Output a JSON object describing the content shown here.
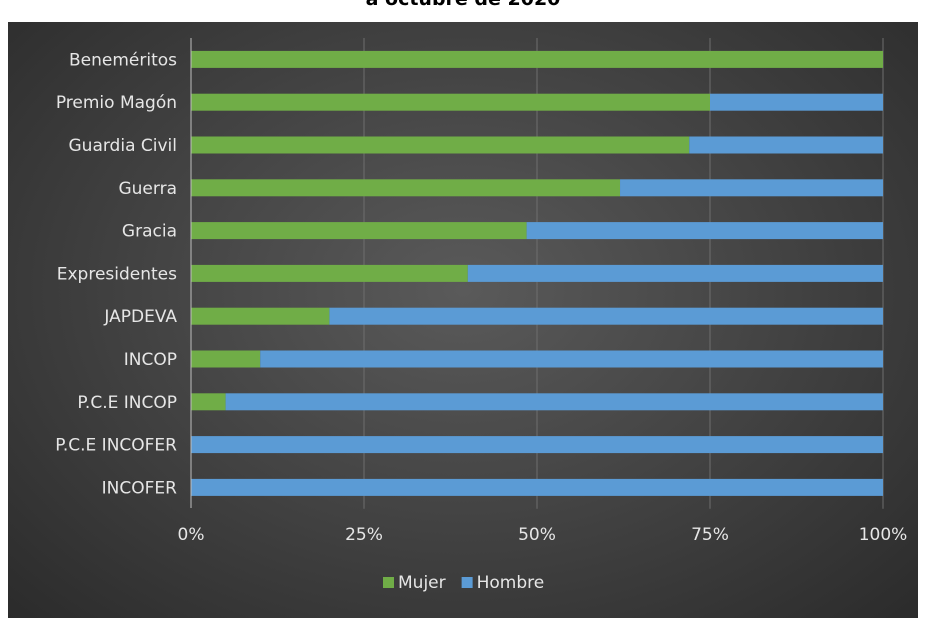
{
  "chart_data": {
    "type": "bar",
    "orientation": "horizontal",
    "stacked": "percent",
    "title": "a octubre de 2020",
    "categories": [
      "Beneméritos",
      "Premio Magón",
      "Guardia Civil",
      "Guerra",
      "Gracia",
      "Expresidentes",
      "JAPDEVA",
      "INCOP",
      "P.C.E INCOP",
      "P.C.E INCOFER",
      "INCOFER"
    ],
    "series": [
      {
        "name": "Mujer",
        "color": "#70ad47",
        "values": [
          100,
          75,
          72,
          62,
          48.5,
          40,
          20,
          10,
          5,
          0,
          0
        ]
      },
      {
        "name": "Hombre",
        "color": "#5b9bd5",
        "values": [
          0,
          25,
          28,
          38,
          51.5,
          60,
          80,
          90,
          95,
          100,
          100
        ]
      }
    ],
    "x_ticks": [
      "0%",
      "25%",
      "50%",
      "75%",
      "100%"
    ],
    "xlim": [
      0,
      100
    ],
    "grid": true,
    "legend_position": "bottom"
  }
}
